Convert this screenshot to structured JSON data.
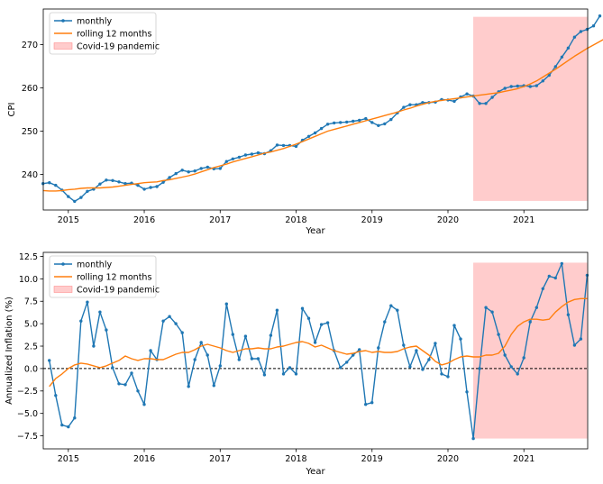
{
  "chart_data": [
    {
      "type": "line",
      "xlabel": "Year",
      "ylabel": "CPI",
      "x_ticks": [
        "2015",
        "2016",
        "2017",
        "2018",
        "2019",
        "2020",
        "2021"
      ],
      "y_ticks": [
        "240",
        "250",
        "260",
        "270"
      ],
      "xlim": [
        2014.67,
        2021.84
      ],
      "ylim": [
        231.8,
        278.2
      ],
      "legend": {
        "placement": "top-left",
        "entries": [
          "monthly",
          "rolling 12 months",
          "Covid-19 pandemic"
        ]
      },
      "colors": {
        "monthly": "#1f77b4",
        "rolling": "#ff7f0e",
        "covid": "#ffcccc",
        "covid_edge": "#ff8080"
      },
      "covid_span": {
        "x": [
          2020.333,
          2021.833
        ],
        "y": [
          233.9,
          276.4
        ]
      },
      "x_start": 2014.667,
      "x_step": 0.08333,
      "series": [
        {
          "name": "monthly",
          "values": [
            237.9,
            238.1,
            237.5,
            236.4,
            234.9,
            233.8,
            234.7,
            236.1,
            236.6,
            237.8,
            238.7,
            238.6,
            238.3,
            237.9,
            238.0,
            237.5,
            236.6,
            237.0,
            237.2,
            238.2,
            239.3,
            240.2,
            241.0,
            240.6,
            240.8,
            241.4,
            241.7,
            241.3,
            241.4,
            243.0,
            243.6,
            244.0,
            244.5,
            244.7,
            245.0,
            244.8,
            245.5,
            246.8,
            246.7,
            246.7,
            246.5,
            247.9,
            248.8,
            249.6,
            250.6,
            251.6,
            251.9,
            252.0,
            252.1,
            252.3,
            252.5,
            252.9,
            252.0,
            251.3,
            251.7,
            252.7,
            254.2,
            255.5,
            256.1,
            256.1,
            256.6,
            256.6,
            256.7,
            257.3,
            257.2,
            256.9,
            257.9,
            258.6,
            258.1,
            256.4,
            256.4,
            257.8,
            259.1,
            259.9,
            260.3,
            260.4,
            260.5,
            260.3,
            260.5,
            261.6,
            262.9,
            264.9,
            267.1,
            269.2,
            271.7,
            273.0,
            273.5,
            274.3,
            276.6
          ]
        },
        {
          "name": "rolling 12 months",
          "values": [
            236.3,
            236.2,
            236.2,
            236.3,
            236.5,
            236.6,
            236.8,
            236.9,
            236.9,
            236.9,
            237.0,
            237.1,
            237.3,
            237.5,
            237.7,
            237.9,
            238.1,
            238.2,
            238.3,
            238.6,
            238.8,
            239.1,
            239.4,
            239.7,
            240.1,
            240.6,
            241.1,
            241.6,
            242.0,
            242.4,
            242.9,
            243.3,
            243.7,
            244.1,
            244.5,
            244.9,
            245.2,
            245.6,
            246.0,
            246.5,
            247.0,
            247.6,
            248.2,
            248.8,
            249.4,
            250.0,
            250.4,
            250.8,
            251.2,
            251.6,
            252.0,
            252.4,
            252.8,
            253.2,
            253.6,
            254.0,
            254.4,
            254.9,
            255.3,
            255.8,
            256.2,
            256.6,
            256.9,
            257.1,
            257.3,
            257.5,
            257.7,
            257.9,
            258.1,
            258.3,
            258.5,
            258.7,
            258.9,
            259.2,
            259.5,
            259.8,
            260.3,
            260.9,
            261.6,
            262.5,
            263.4,
            264.3,
            265.3,
            266.3,
            267.3,
            268.2,
            269.1,
            269.9,
            270.7,
            271.5,
            272.3
          ]
        }
      ]
    },
    {
      "type": "line",
      "xlabel": "Year",
      "ylabel": "Annualized Inflation (%)",
      "x_ticks": [
        "2015",
        "2016",
        "2017",
        "2018",
        "2019",
        "2020",
        "2021"
      ],
      "y_ticks": [
        "−7.5",
        "−5.0",
        "−2.5",
        "0.0",
        "2.5",
        "5.0",
        "7.5",
        "10.0",
        "12.5"
      ],
      "xlim": [
        2014.67,
        2021.84
      ],
      "ylim": [
        -8.95,
        12.95
      ],
      "legend": {
        "placement": "top-left",
        "entries": [
          "monthly",
          "rolling 12 months",
          "Covid-19 pandemic"
        ]
      },
      "colors": {
        "monthly": "#1f77b4",
        "rolling": "#ff7f0e",
        "covid": "#ffcccc",
        "covid_edge": "#ff8080",
        "zero_line": "#000000"
      },
      "covid_span": {
        "x": [
          2020.333,
          2021.833
        ],
        "y": [
          -7.8,
          11.8
        ]
      },
      "zero_line": 0,
      "x_start": 2014.75,
      "x_step": 0.08333,
      "series": [
        {
          "name": "monthly",
          "values": [
            0.9,
            -3.0,
            -6.3,
            -6.5,
            -5.5,
            5.3,
            7.4,
            2.5,
            6.3,
            4.3,
            0.1,
            -1.7,
            -1.8,
            -0.5,
            -2.5,
            -4.0,
            2.0,
            1.0,
            5.3,
            5.8,
            5.0,
            4.0,
            -2.0,
            1.0,
            2.9,
            1.5,
            -1.9,
            0.3,
            7.2,
            3.8,
            1.0,
            3.6,
            1.1,
            1.1,
            -0.7,
            3.7,
            6.5,
            -0.6,
            0.1,
            -0.6,
            6.7,
            5.6,
            2.9,
            4.9,
            5.1,
            2.0,
            0.1,
            0.7,
            1.5,
            2.1,
            -4.0,
            -3.8,
            2.3,
            5.2,
            7.0,
            6.5,
            2.6,
            0.2,
            2.0,
            -0.1,
            1.0,
            2.8,
            -0.6,
            -0.9,
            4.8,
            3.3,
            -2.6,
            -7.8,
            0.0,
            6.8,
            6.3,
            3.8,
            1.5,
            0.2,
            -0.6,
            1.2,
            5.2,
            6.8,
            8.9,
            10.3,
            10.1,
            11.7,
            6.0,
            2.6,
            3.3,
            10.4
          ]
        },
        {
          "name": "rolling 12 months",
          "values": [
            -2.0,
            -1.1,
            -0.6,
            0.0,
            0.4,
            0.6,
            0.5,
            0.3,
            0.1,
            0.3,
            0.6,
            0.9,
            1.4,
            1.1,
            0.9,
            1.1,
            1.1,
            1.0,
            1.0,
            1.3,
            1.6,
            1.8,
            1.8,
            2.1,
            2.5,
            2.7,
            2.5,
            2.3,
            2.0,
            1.8,
            2.0,
            2.2,
            2.2,
            2.3,
            2.2,
            2.2,
            2.4,
            2.5,
            2.7,
            2.9,
            3.0,
            2.8,
            2.4,
            2.6,
            2.3,
            2.0,
            1.8,
            1.6,
            1.7,
            1.9,
            2.0,
            1.8,
            1.9,
            1.8,
            1.8,
            1.9,
            2.2,
            2.4,
            2.5,
            2.0,
            1.5,
            0.8,
            0.4,
            0.6,
            1.0,
            1.3,
            1.4,
            1.3,
            1.3,
            1.5,
            1.5,
            1.7,
            2.5,
            3.8,
            4.7,
            5.2,
            5.5,
            5.5,
            5.4,
            5.5,
            6.3,
            6.9,
            7.4,
            7.7,
            7.8,
            7.8
          ]
        }
      ]
    }
  ]
}
